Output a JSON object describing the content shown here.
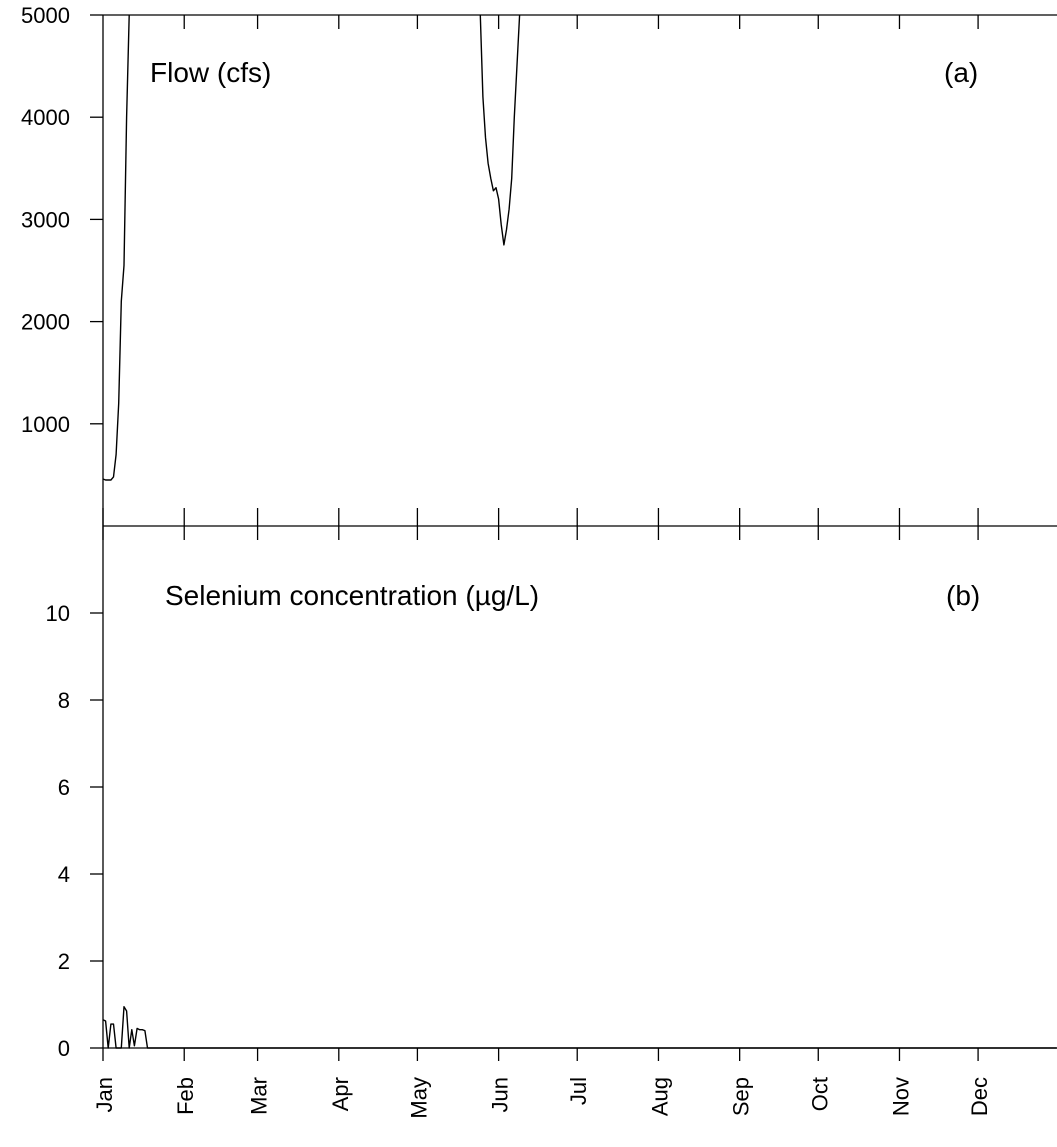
{
  "chart_data": [
    {
      "type": "line",
      "panel": "(a)",
      "label": "Flow (cfs)",
      "ylim": [
        0,
        5000
      ],
      "yticks": [
        1000,
        2000,
        3000,
        4000,
        5000
      ],
      "ytick_labels": [
        "1000",
        "2000",
        "3000",
        "4000",
        "5000"
      ],
      "x_unit": "day of year",
      "xlim": [
        1,
        365
      ],
      "series": [
        {
          "segments": [
            [
              [
                1,
                460
              ],
              [
                2,
                450
              ],
              [
                4,
                450
              ],
              [
                5,
                480
              ],
              [
                6,
                700
              ],
              [
                7,
                1200
              ],
              [
                8,
                2200
              ],
              [
                9,
                2550
              ],
              [
                10,
                4000
              ],
              [
                11,
                5000
              ]
            ],
            [
              [
                145,
                5000
              ],
              [
                146,
                4200
              ],
              [
                147,
                3800
              ],
              [
                148,
                3550
              ],
              [
                149,
                3400
              ],
              [
                150,
                3280
              ],
              [
                151,
                3310
              ],
              [
                152,
                3200
              ],
              [
                153,
                2950
              ],
              [
                154,
                2750
              ],
              [
                155,
                2900
              ],
              [
                156,
                3100
              ],
              [
                157,
                3400
              ],
              [
                158,
                4000
              ],
              [
                160,
                5000
              ]
            ]
          ]
        }
      ],
      "grid": false
    },
    {
      "type": "line",
      "panel": "(b)",
      "label": "Selenium concentration (µg/L)",
      "ylim": [
        0,
        12
      ],
      "yticks": [
        0,
        2,
        4,
        6,
        8,
        10
      ],
      "ytick_labels": [
        "0",
        "2",
        "4",
        "6",
        "8",
        "10"
      ],
      "x_unit": "day of year",
      "xlim": [
        1,
        365
      ],
      "series": [
        {
          "points": [
            [
              1,
              0.65
            ],
            [
              2,
              0.62
            ],
            [
              3,
              0
            ],
            [
              4,
              0.55
            ],
            [
              5,
              0.55
            ],
            [
              6,
              0
            ],
            [
              7,
              0
            ],
            [
              8,
              0
            ],
            [
              9,
              0.95
            ],
            [
              10,
              0.85
            ],
            [
              11,
              0
            ],
            [
              12,
              0.42
            ],
            [
              13,
              0.05
            ],
            [
              14,
              0.45
            ],
            [
              15,
              0.42
            ],
            [
              16,
              0.42
            ],
            [
              17,
              0.4
            ],
            [
              18,
              0
            ],
            [
              365,
              0
            ]
          ]
        }
      ],
      "grid": false
    }
  ],
  "x_axis": {
    "months": [
      "Jan",
      "Feb",
      "Mar",
      "Apr",
      "May",
      "Jun",
      "Jul",
      "Aug",
      "Sep",
      "Oct",
      "Nov",
      "Dec"
    ],
    "month_start_days": [
      1,
      32,
      60,
      91,
      121,
      152,
      182,
      213,
      244,
      274,
      305,
      335
    ]
  }
}
